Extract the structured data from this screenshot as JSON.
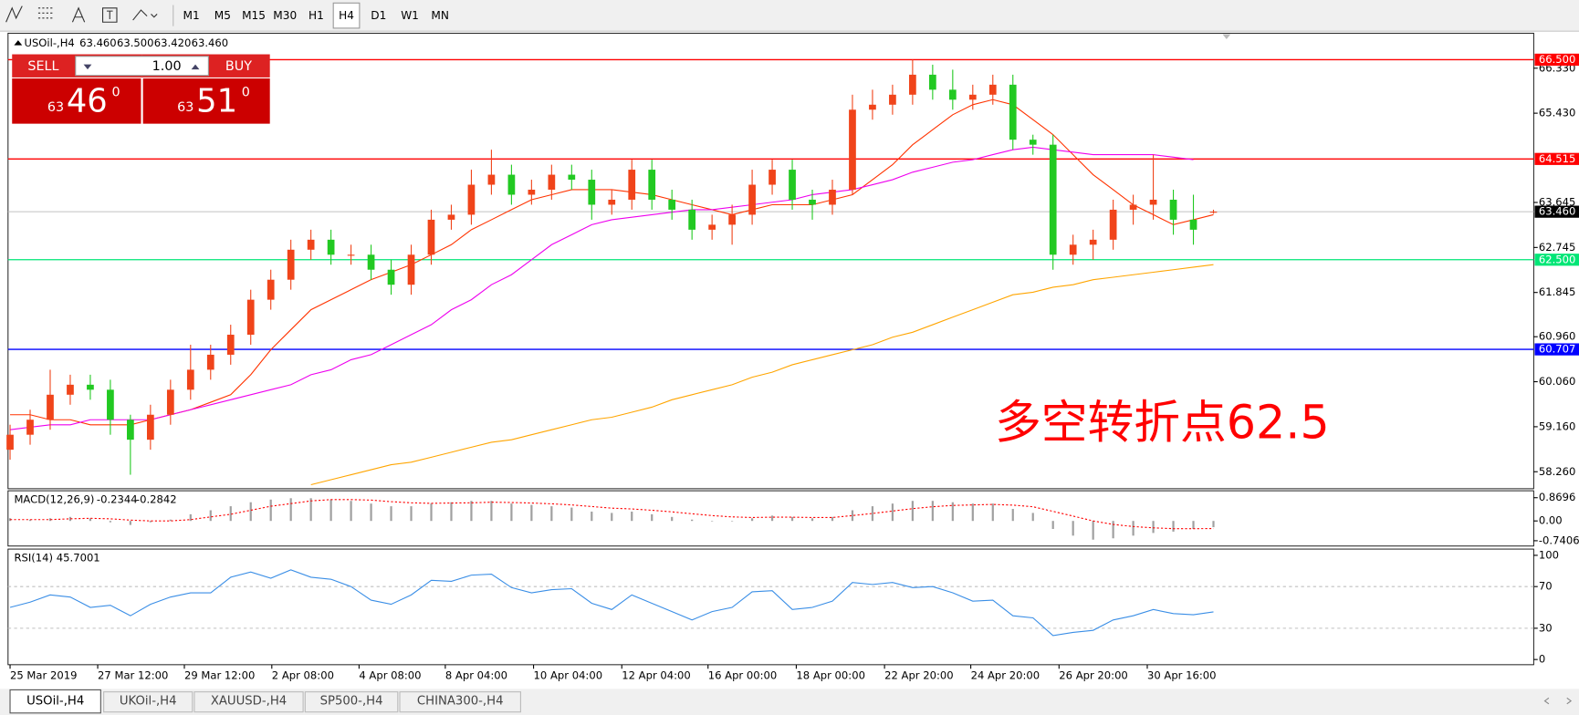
{
  "toolbar": {
    "timeframes": [
      "M1",
      "M5",
      "M15",
      "M30",
      "H1",
      "H4",
      "D1",
      "W1",
      "MN"
    ]
  },
  "trade_panel": {
    "sell": "SELL",
    "buy": "BUY",
    "volume": "1.00",
    "sell_price": {
      "big": "63",
      "main": "46",
      "sup": "0"
    },
    "buy_price": {
      "big": "63",
      "main": "51",
      "sup": "0"
    }
  },
  "chart_data": {
    "type": "candlestick",
    "symbol": "USOil-,H4",
    "readout": [
      "63.460",
      "63.500",
      "63.420",
      "63.460"
    ],
    "up_color": "#f0441a",
    "down_color": "#22c922",
    "open": [
      58.7,
      59.0,
      59.3,
      59.8,
      60.0,
      59.9,
      59.3,
      58.9,
      59.4,
      59.9,
      60.3,
      60.6,
      61.0,
      61.7,
      62.1,
      62.7,
      62.9,
      62.6,
      62.6,
      62.3,
      62.0,
      62.6,
      63.3,
      63.4,
      64.0,
      64.2,
      63.8,
      63.9,
      64.2,
      64.1,
      63.6,
      63.7,
      64.3,
      63.7,
      63.5,
      63.1,
      63.2,
      63.4,
      64.0,
      64.3,
      63.7,
      63.6,
      63.9,
      65.5,
      65.6,
      65.8,
      66.2,
      65.9,
      65.7,
      65.8,
      66.0,
      64.9,
      64.8,
      62.6,
      62.8,
      62.9,
      63.5,
      63.6,
      63.7,
      63.3,
      63.46
    ],
    "high": [
      59.2,
      59.5,
      60.3,
      60.2,
      60.2,
      60.1,
      59.4,
      59.6,
      60.1,
      60.8,
      60.8,
      61.2,
      61.9,
      62.3,
      62.9,
      63.1,
      63.1,
      62.8,
      62.8,
      62.5,
      62.8,
      63.5,
      63.6,
      64.3,
      64.7,
      64.4,
      64.1,
      64.4,
      64.4,
      64.3,
      63.9,
      64.5,
      64.5,
      63.9,
      63.7,
      63.4,
      63.6,
      64.3,
      64.5,
      64.5,
      63.9,
      64.1,
      65.8,
      65.9,
      66.0,
      66.5,
      66.4,
      66.3,
      66.0,
      66.2,
      66.2,
      65.0,
      65.0,
      63.0,
      63.1,
      63.7,
      63.8,
      64.6,
      63.9,
      63.8,
      63.5
    ],
    "low": [
      58.5,
      58.8,
      59.1,
      59.6,
      59.7,
      59.0,
      58.2,
      58.7,
      59.2,
      59.7,
      60.1,
      60.4,
      60.8,
      61.5,
      61.9,
      62.5,
      62.4,
      62.4,
      62.1,
      61.8,
      61.8,
      62.4,
      63.1,
      63.2,
      63.8,
      63.6,
      63.6,
      63.7,
      63.9,
      63.3,
      63.4,
      63.5,
      63.5,
      63.3,
      62.9,
      62.9,
      62.8,
      63.2,
      63.8,
      63.5,
      63.3,
      63.4,
      63.8,
      65.3,
      65.4,
      65.6,
      65.7,
      65.5,
      65.5,
      65.6,
      64.7,
      64.6,
      62.3,
      62.4,
      62.5,
      62.7,
      63.2,
      63.3,
      63.0,
      62.8,
      63.42
    ],
    "close": [
      59.0,
      59.3,
      59.8,
      60.0,
      59.9,
      59.3,
      58.9,
      59.4,
      59.9,
      60.3,
      60.6,
      61.0,
      61.7,
      62.1,
      62.7,
      62.9,
      62.6,
      62.6,
      62.3,
      62.0,
      62.6,
      63.3,
      63.4,
      64.0,
      64.2,
      63.8,
      63.9,
      64.2,
      64.1,
      63.6,
      63.7,
      64.3,
      63.7,
      63.5,
      63.1,
      63.2,
      63.4,
      64.0,
      64.3,
      63.7,
      63.6,
      63.9,
      65.5,
      65.6,
      65.8,
      66.2,
      65.9,
      65.7,
      65.8,
      66.0,
      64.9,
      64.8,
      62.6,
      62.8,
      62.9,
      63.5,
      63.6,
      63.7,
      63.3,
      63.1,
      63.46
    ],
    "series": [
      {
        "color": "#ff3300",
        "values": [
          59.4,
          59.4,
          59.3,
          59.3,
          59.2,
          59.2,
          59.2,
          59.3,
          59.4,
          59.5,
          59.65,
          59.8,
          60.2,
          60.7,
          61.1,
          61.5,
          61.7,
          61.9,
          62.1,
          62.25,
          62.4,
          62.6,
          62.8,
          63.1,
          63.3,
          63.5,
          63.7,
          63.8,
          63.9,
          63.9,
          63.9,
          63.85,
          63.8,
          63.7,
          63.6,
          63.5,
          63.4,
          63.5,
          63.6,
          63.6,
          63.6,
          63.7,
          63.8,
          64.1,
          64.4,
          64.8,
          65.1,
          65.4,
          65.6,
          65.7,
          65.6,
          65.3,
          65.0,
          64.6,
          64.2,
          63.9,
          63.6,
          63.4,
          63.2,
          63.3,
          63.4
        ]
      },
      {
        "color": "#ee00ee",
        "values": [
          59.1,
          59.15,
          59.2,
          59.2,
          59.3,
          59.3,
          59.3,
          59.3,
          59.4,
          59.5,
          59.6,
          59.7,
          59.8,
          59.9,
          60.0,
          60.2,
          60.3,
          60.5,
          60.6,
          60.8,
          61.0,
          61.2,
          61.5,
          61.7,
          62.0,
          62.2,
          62.5,
          62.8,
          63.0,
          63.2,
          63.3,
          63.35,
          63.4,
          63.45,
          63.5,
          63.5,
          63.55,
          63.6,
          63.65,
          63.7,
          63.8,
          63.85,
          63.9,
          64.0,
          64.1,
          64.25,
          64.35,
          64.45,
          64.5,
          64.6,
          64.7,
          64.75,
          64.7,
          64.65,
          64.6,
          64.6,
          64.6,
          64.6,
          64.55,
          64.5,
          null
        ]
      },
      {
        "color": "#ffa500",
        "values": [
          null,
          null,
          null,
          null,
          null,
          null,
          null,
          null,
          null,
          null,
          null,
          null,
          null,
          null,
          null,
          58.0,
          58.1,
          58.2,
          58.3,
          58.4,
          58.45,
          58.55,
          58.65,
          58.75,
          58.85,
          58.9,
          59.0,
          59.1,
          59.2,
          59.3,
          59.35,
          59.45,
          59.55,
          59.7,
          59.8,
          59.9,
          60.0,
          60.15,
          60.25,
          60.4,
          60.5,
          60.6,
          60.7,
          60.8,
          60.95,
          61.05,
          61.2,
          61.35,
          61.5,
          61.65,
          61.8,
          61.85,
          61.95,
          62.0,
          62.1,
          62.15,
          62.2,
          62.25,
          62.3,
          62.35,
          62.4
        ]
      }
    ],
    "ylim": [
      57.92,
      67.03
    ],
    "yticks": [
      {
        "value": 66.33,
        "label": "66.330"
      },
      {
        "value": 65.43,
        "label": "65.430"
      },
      {
        "value": 63.645,
        "label": "63.645"
      },
      {
        "value": 62.745,
        "label": "62.745"
      },
      {
        "value": 61.845,
        "label": "61.845"
      },
      {
        "value": 60.96,
        "label": "60.960"
      },
      {
        "value": 60.06,
        "label": "60.060"
      },
      {
        "value": 59.16,
        "label": "59.160"
      },
      {
        "value": 58.26,
        "label": "58.260"
      }
    ],
    "hlines": [
      {
        "value": 66.5,
        "label": "66.500",
        "color": "#ff0000"
      },
      {
        "value": 64.515,
        "label": "64.515",
        "color": "#ff0000"
      },
      {
        "value": 62.5,
        "label": "62.500",
        "color": "#00e676"
      },
      {
        "value": 60.707,
        "label": "60.707",
        "color": "#0000ff"
      }
    ],
    "current_price": {
      "value": 63.46,
      "label": "63.460"
    },
    "annotation": "多空转折点62.5",
    "xticks": [
      {
        "value": 0,
        "label": "25 Mar 2019"
      },
      {
        "value": 4.37,
        "label": "27 Mar 12:00"
      },
      {
        "value": 8.69,
        "label": "29 Mar 12:00"
      },
      {
        "value": 13.05,
        "label": "2 Apr 08:00"
      },
      {
        "value": 17.4,
        "label": "4 Apr 08:00"
      },
      {
        "value": 21.7,
        "label": "8 Apr 04:00"
      },
      {
        "value": 26.1,
        "label": "10 Apr 04:00"
      },
      {
        "value": 30.5,
        "label": "12 Apr 04:00"
      },
      {
        "value": 34.8,
        "label": "16 Apr 00:00"
      },
      {
        "value": 39.2,
        "label": "18 Apr 00:00"
      },
      {
        "value": 43.6,
        "label": "22 Apr 20:00"
      },
      {
        "value": 47.9,
        "label": "24 Apr 20:00"
      },
      {
        "value": 52.3,
        "label": "26 Apr 20:00"
      },
      {
        "value": 56.7,
        "label": "30 Apr 16:00"
      }
    ],
    "macd": {
      "title": "MACD(12,26,9)",
      "readout": [
        "-0.2344",
        "-0.2842"
      ],
      "color": "#a0a0a0",
      "signal_color": "#ff0000",
      "histogram": [
        0.1,
        0.05,
        0.1,
        0.15,
        0.1,
        -0.05,
        -0.15,
        -0.05,
        0.05,
        0.25,
        0.4,
        0.55,
        0.7,
        0.8,
        0.85,
        0.85,
        0.8,
        0.75,
        0.65,
        0.55,
        0.55,
        0.65,
        0.7,
        0.75,
        0.75,
        0.65,
        0.6,
        0.55,
        0.5,
        0.35,
        0.3,
        0.35,
        0.25,
        0.15,
        0.05,
        0.0,
        0.0,
        0.1,
        0.2,
        0.15,
        0.1,
        0.15,
        0.4,
        0.55,
        0.65,
        0.75,
        0.75,
        0.7,
        0.65,
        0.65,
        0.45,
        0.3,
        -0.3,
        -0.55,
        -0.7,
        -0.65,
        -0.55,
        -0.45,
        -0.4,
        -0.3,
        -0.2344
      ],
      "signal": [
        0.05,
        0.05,
        0.05,
        0.08,
        0.1,
        0.08,
        0.03,
        0.0,
        0.0,
        0.05,
        0.15,
        0.25,
        0.4,
        0.55,
        0.65,
        0.75,
        0.8,
        0.8,
        0.78,
        0.72,
        0.68,
        0.66,
        0.67,
        0.68,
        0.7,
        0.69,
        0.67,
        0.64,
        0.6,
        0.54,
        0.48,
        0.45,
        0.4,
        0.34,
        0.27,
        0.2,
        0.15,
        0.13,
        0.14,
        0.14,
        0.13,
        0.13,
        0.2,
        0.28,
        0.37,
        0.46,
        0.53,
        0.58,
        0.6,
        0.62,
        0.59,
        0.53,
        0.36,
        0.18,
        0.0,
        -0.13,
        -0.21,
        -0.26,
        -0.29,
        -0.29,
        -0.2842
      ],
      "ylim": [
        -0.94,
        1.13
      ],
      "yticks": [
        0.8696,
        {
          "value": 0,
          "label": "0.00"
        },
        -0.7406
      ]
    },
    "rsi": {
      "title": "RSI(14)",
      "readout": "45.7001",
      "color": "#3a8ee6",
      "values": [
        50,
        55,
        62,
        60,
        50,
        52,
        42,
        53,
        60,
        64,
        64,
        79,
        84,
        78,
        86,
        79,
        77,
        70,
        57,
        53,
        62,
        76,
        75,
        81,
        82,
        69,
        64,
        67,
        68,
        54,
        48,
        62,
        54,
        46,
        38,
        46,
        50,
        65,
        66,
        48,
        50,
        56,
        74,
        72,
        74,
        69,
        70,
        64,
        56,
        57,
        42,
        40,
        23,
        26,
        28,
        38,
        42,
        48,
        44,
        43,
        45.7001
      ],
      "ylim": [
        -5,
        106
      ],
      "yticks": [
        100,
        70,
        30,
        0
      ],
      "levels": [
        70,
        30
      ]
    }
  },
  "tabs": [
    "USOil-,H4",
    "UKOil-,H4",
    "XAUUSD-,H4",
    "SP500-,H4",
    "CHINA300-,H4"
  ]
}
